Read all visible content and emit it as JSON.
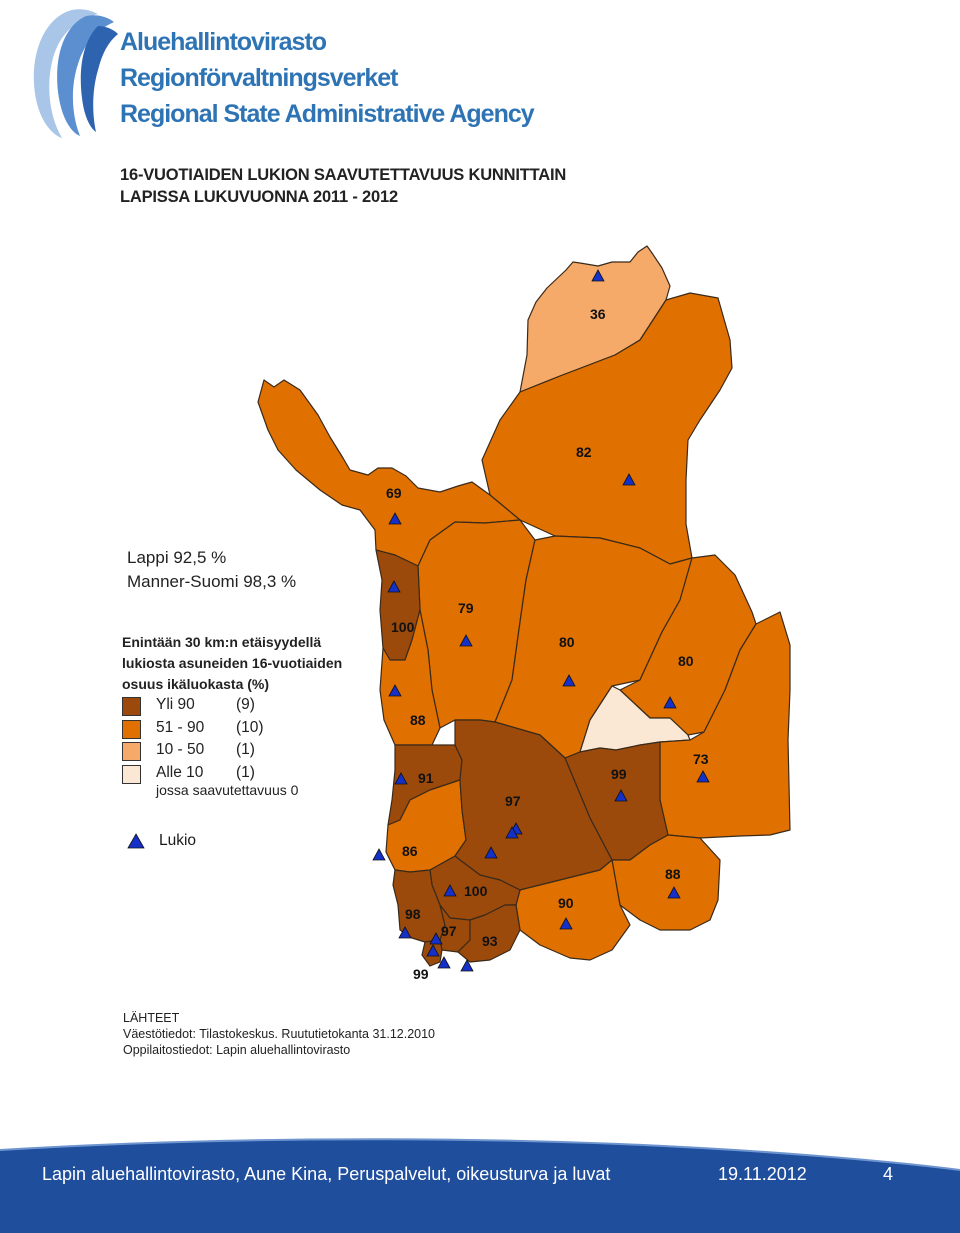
{
  "logo": {
    "lines": [
      "Aluehallintovirasto",
      "Regionförvaltningsverket",
      "Regional State Administrative Agency"
    ]
  },
  "title": {
    "line1": "16-VUOTIAIDEN LUKION SAAVUTETTAVUUS KUNNITTAIN",
    "line2": "LAPISSA LUKUVUONNA 2011 - 2012"
  },
  "summary": {
    "lappi": "Lappi 92,5 %",
    "manner_suomi": "Manner-Suomi 98,3 %"
  },
  "legend": {
    "heading": [
      "Enintään 30 km:n etäisyydellä",
      "lukiosta asuneiden 16-vuotiaiden",
      "osuus ikäluokasta (%)"
    ],
    "classes": [
      {
        "label": "Yli 90",
        "count": "(9)",
        "color": "#9b4a0c"
      },
      {
        "label": "51 - 90",
        "count": "(10)",
        "color": "#e07000"
      },
      {
        "label": "10 - 50",
        "count": "(1)",
        "color": "#f5aa6a"
      },
      {
        "label": "Alle 10",
        "count": "(1)",
        "color": "#fbe8d4"
      }
    ],
    "note": "jossa saavutettavuus 0",
    "lukio_label": "Lukio"
  },
  "map": {
    "marker_color": "#1530c8",
    "municipality_values": [
      "36",
      "82",
      "69",
      "79",
      "100",
      "80",
      "80",
      "88",
      "91",
      "97",
      "99",
      "73",
      "86",
      "100",
      "98",
      "90",
      "88",
      "97",
      "93",
      "99"
    ]
  },
  "sources": {
    "heading": "LÄHTEET",
    "line1": "Väestötiedot: Tilastokeskus. Ruututietokanta 31.12.2010",
    "line2": "Oppilaitostiedot: Lapin aluehallintovirasto"
  },
  "footer": {
    "text": "Lapin aluehallintovirasto, Aune Kina, Peruspalvelut, oikeusturva ja luvat",
    "date": "19.11.2012",
    "page": "4",
    "color": "#1f4e9c"
  }
}
